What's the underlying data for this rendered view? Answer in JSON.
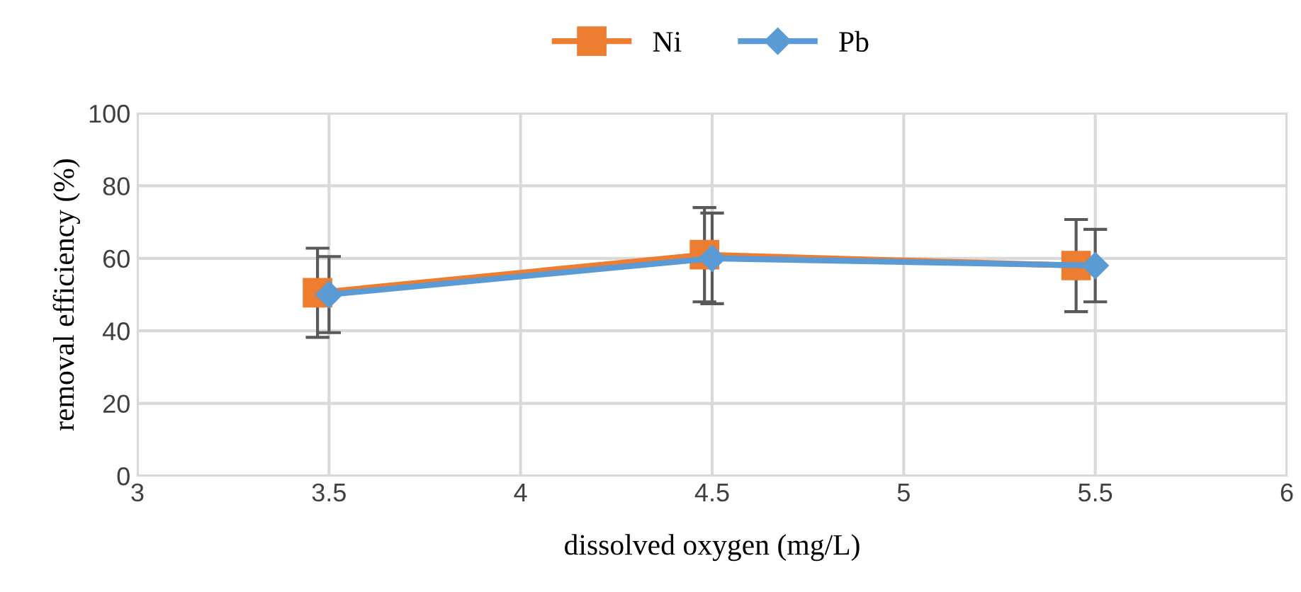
{
  "chart_data": {
    "type": "line",
    "xlabel": "dissolved oxygen (mg/L)",
    "ylabel": "removal efficiency (%)",
    "xlim": [
      3,
      6
    ],
    "xticks": [
      3,
      3.5,
      4,
      4.5,
      5,
      5.5,
      6
    ],
    "ylim": [
      0,
      100
    ],
    "yticks": [
      0,
      20,
      40,
      60,
      80,
      100
    ],
    "grid": true,
    "legend": "top",
    "series": [
      {
        "name": "Ni",
        "color": "#ed7d31",
        "marker": "square",
        "x": [
          3.47,
          4.48,
          5.45
        ],
        "values": [
          50.5,
          61,
          58
        ],
        "errors": [
          12.3,
          13,
          12.7
        ]
      },
      {
        "name": "Pb",
        "color": "#5b9bd5",
        "marker": "diamond",
        "x": [
          3.5,
          4.5,
          5.5
        ],
        "values": [
          50,
          60,
          58
        ],
        "errors": [
          10.5,
          12.5,
          10
        ]
      }
    ]
  }
}
